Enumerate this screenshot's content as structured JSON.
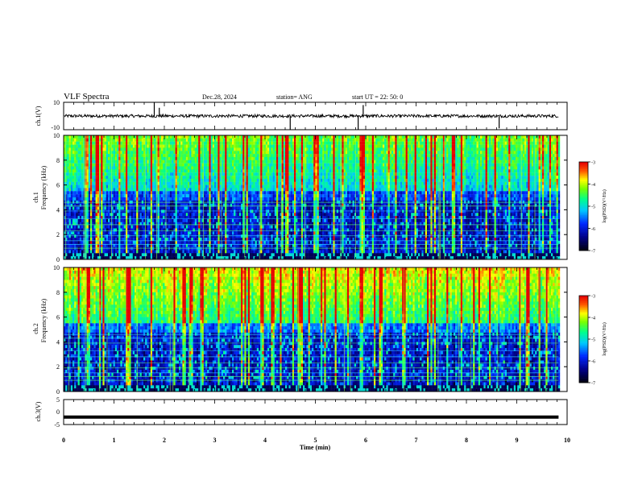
{
  "header": {
    "title": "VLF Spectra",
    "date": "Dec.28, 2024",
    "station": "station= ANG",
    "start": "start  UT =   22: 50: 0"
  },
  "axes": {
    "ch1_label": "ch.1(V)",
    "ch3_label": "ch.3(V)",
    "spec1_label_a": "ch.1",
    "spec1_label_b": "Frequency  (kHz)",
    "spec2_label_a": "ch.2",
    "spec2_label_b": "Frequency  (kHz)",
    "xlabel": "Time  (min)",
    "colorbar_label": "log(PSD)(V²/Hz)"
  },
  "colors": {
    "colormap": [
      "#000000",
      "#0000ff",
      "#00c8ff",
      "#00ff80",
      "#ffff00",
      "#ff0000",
      "#ffffff"
    ]
  },
  "chart_data": [
    {
      "type": "line",
      "name": "ch.1 waveform",
      "ylabel": "ch.1(V)",
      "ylim": [
        -10,
        10
      ],
      "yticks": [
        10,
        -10
      ],
      "xlim": [
        0,
        10
      ],
      "baseline": 0,
      "spikes_x": [
        1.8,
        1.9,
        4.5,
        5.85,
        5.95,
        8.65
      ],
      "spikes_y": [
        10,
        6,
        -10,
        -10,
        8,
        -9
      ]
    },
    {
      "type": "heatmap",
      "name": "ch.1 spectrogram",
      "ylabel": "Frequency  (kHz)",
      "ylim": [
        0,
        10
      ],
      "yticks": [
        0,
        2,
        4,
        6,
        8,
        10
      ],
      "xlim": [
        0,
        9.83
      ],
      "colorbar": {
        "range": [
          -7,
          -3
        ],
        "ticks": [
          -3,
          -4,
          -5,
          -6,
          -7
        ]
      }
    },
    {
      "type": "heatmap",
      "name": "ch.2 spectrogram",
      "ylabel": "Frequency  (kHz)",
      "ylim": [
        0,
        10
      ],
      "yticks": [
        0,
        2,
        4,
        6,
        8,
        10
      ],
      "xlim": [
        0,
        9.83
      ],
      "colorbar": {
        "range": [
          -7,
          -3
        ],
        "ticks": [
          -3,
          -4,
          -5,
          -6,
          -7
        ]
      }
    },
    {
      "type": "line",
      "name": "ch.3 waveform",
      "ylabel": "ch.3(V)",
      "ylim": [
        -5,
        5
      ],
      "yticks": [
        5,
        0,
        -5
      ],
      "xlim": [
        0,
        10
      ],
      "constant_value": -2,
      "xticks": [
        0,
        1,
        2,
        3,
        4,
        5,
        6,
        7,
        8,
        9,
        10
      ]
    }
  ]
}
